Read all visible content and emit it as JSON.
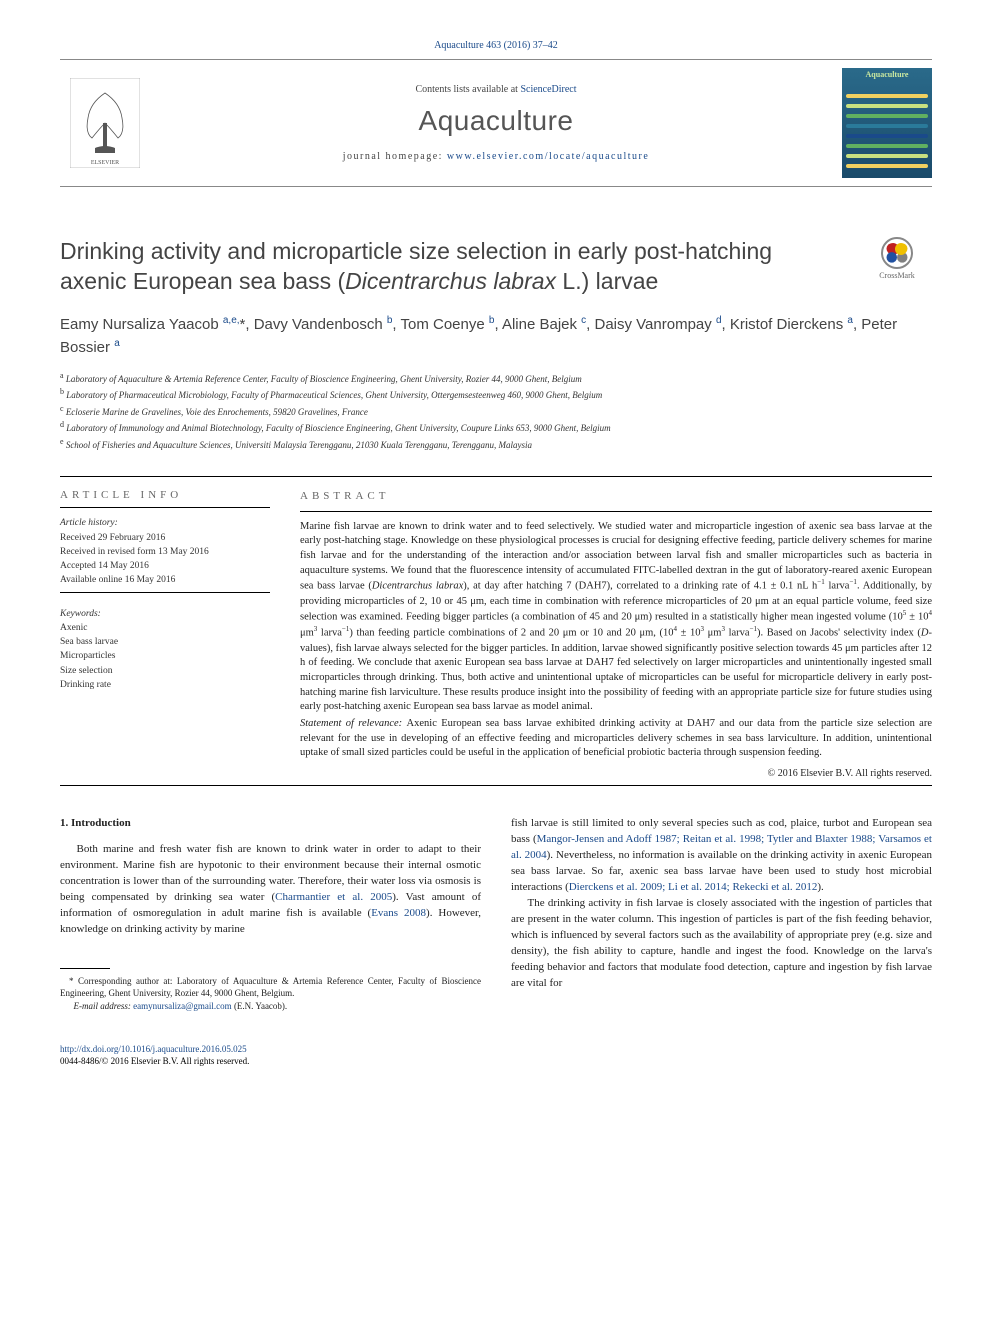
{
  "citation": "Aquaculture 463 (2016) 37–42",
  "header": {
    "contents_prefix": "Contents lists available at ",
    "contents_link": "ScienceDirect",
    "journal_name": "Aquaculture",
    "homepage_prefix": "journal homepage: ",
    "homepage_link": "www.elsevier.com/locate/aquaculture",
    "cover_label": "Aquaculture",
    "cover_bg": "#1a4a6a",
    "wave_colors": [
      "#f0d060",
      "#c8e080",
      "#60b060",
      "#2a7a9a",
      "#1a4a8a",
      "#60b060",
      "#c8e080",
      "#f0d060"
    ]
  },
  "crossmark_label": "CrossMark",
  "title_html": "Drinking activity and microparticle size selection in early post-hatching axenic European sea bass (<em>Dicentrarchus labrax</em> L.) larvae",
  "authors_html": "Eamy Nursaliza Yaacob <sup>a,e,</sup>*, Davy Vandenbosch <sup>b</sup>, Tom Coenye <sup>b</sup>, Aline Bajek <sup>c</sup>, Daisy Vanrompay <sup>d</sup>, Kristof Dierckens <sup>a</sup>, Peter Bossier <sup>a</sup>",
  "affiliations": [
    {
      "sup": "a",
      "text": "Laboratory of Aquaculture & Artemia Reference Center, Faculty of Bioscience Engineering, Ghent University, Rozier 44, 9000 Ghent, Belgium"
    },
    {
      "sup": "b",
      "text": "Laboratory of Pharmaceutical Microbiology, Faculty of Pharmaceutical Sciences, Ghent University, Ottergemsesteenweg 460, 9000 Ghent, Belgium"
    },
    {
      "sup": "c",
      "text": "Ecloserie Marine de Gravelines, Voie des Enrochements, 59820 Gravelines, France"
    },
    {
      "sup": "d",
      "text": "Laboratory of Immunology and Animal Biotechnology, Faculty of Bioscience Engineering, Ghent University, Coupure Links 653, 9000 Ghent, Belgium"
    },
    {
      "sup": "e",
      "text": "School of Fisheries and Aquaculture Sciences, Universiti Malaysia Terengganu, 21030 Kuala Terengganu, Terengganu, Malaysia"
    }
  ],
  "article_info_head": "article info",
  "abstract_head": "abstract",
  "history": {
    "head": "Article history:",
    "received": "Received 29 February 2016",
    "revised": "Received in revised form 13 May 2016",
    "accepted": "Accepted 14 May 2016",
    "online": "Available online 16 May 2016"
  },
  "keywords": {
    "head": "Keywords:",
    "items": [
      "Axenic",
      "Sea bass larvae",
      "Microparticles",
      "Size selection",
      "Drinking rate"
    ]
  },
  "abstract_html": "Marine fish larvae are known to drink water and to feed selectively. We studied water and microparticle ingestion of axenic sea bass larvae at the early post-hatching stage. Knowledge on these physiological processes is crucial for designing effective feeding, particle delivery schemes for marine fish larvae and for the understanding of the interaction and/or association between larval fish and smaller microparticles such as bacteria in aquaculture systems. We found that the fluorescence intensity of accumulated FITC-labelled dextran in the gut of laboratory-reared axenic European sea bass larvae (<em>Dicentrarchus labrax</em>), at day after hatching 7 (DAH7), correlated to a drinking rate of 4.1 ± 0.1 nL h<sup>−1</sup> larva<sup>−1</sup>. Additionally, by providing microparticles of 2, 10 or 45 μm, each time in combination with reference microparticles of 20 μm at an equal particle volume, feed size selection was examined. Feeding bigger particles (a combination of 45 and 20 μm) resulted in a statistically higher mean ingested volume (10<sup>5</sup> ± 10<sup>4</sup> μm<sup>3</sup> larva<sup>−1</sup>) than feeding particle combinations of 2 and 20 μm or 10 and 20 μm, (10<sup>4</sup> ± 10<sup>3</sup> μm<sup>3</sup> larva<sup>−1</sup>). Based on Jacobs' selectivity index (<em>D</em>-values), fish larvae always selected for the bigger particles. In addition, larvae showed significantly positive selection towards 45 μm particles after 12 h of feeding. We conclude that axenic European sea bass larvae at DAH7 fed selectively on larger microparticles and unintentionally ingested small microparticles through drinking. Thus, both active and unintentional uptake of microparticles can be useful for microparticle delivery in early post-hatching marine fish larviculture. These results produce insight into the possibility of feeding with an appropriate particle size for future studies using early post-hatching axenic European sea bass larvae as model animal.",
  "statement_head": "Statement of relevance: ",
  "statement_text": "Axenic European sea bass larvae exhibited drinking activity at DAH7 and our data from the particle size selection are relevant for the use in developing of an effective feeding and microparticles delivery schemes in sea bass larviculture. In addition, unintentional uptake of small sized particles could be useful in the application of beneficial probiotic bacteria through suspension feeding.",
  "copyright": "© 2016 Elsevier B.V. All rights reserved.",
  "body": {
    "head": "1. Introduction",
    "p1_html": "Both marine and fresh water fish are known to drink water in order to adapt to their environment. Marine fish are hypotonic to their environment because their internal osmotic concentration is lower than of the surrounding water. Therefore, their water loss via osmosis is being compensated by drinking sea water (<span class=\"cite\">Charmantier et al. 2005</span>). Vast amount of information of osmoregulation in adult marine fish is available (<span class=\"cite\">Evans 2008</span>). However, knowledge on drinking activity by marine",
    "p2_html": "fish larvae is still limited to only several species such as cod, plaice, turbot and European sea bass (<span class=\"cite\">Mangor-Jensen and Adoff 1987; Reitan et al. 1998; Tytler and Blaxter 1988; Varsamos et al. 2004</span>). Nevertheless, no information is available on the drinking activity in axenic European sea bass larvae. So far, axenic sea bass larvae have been used to study host microbial interactions (<span class=\"cite\">Dierckens et al. 2009; Li et al. 2014; Rekecki et al. 2012</span>).",
    "p3_html": "The drinking activity in fish larvae is closely associated with the ingestion of particles that are present in the water column. This ingestion of particles is part of the fish feeding behavior, which is influenced by several factors such as the availability of appropriate prey (e.g. size and density), the fish ability to capture, handle and ingest the food. Knowledge on the larva's feeding behavior and factors that modulate food detection, capture and ingestion by fish larvae are vital for"
  },
  "footnote": {
    "corr": "* Corresponding author at: Laboratory of Aquaculture & Artemia Reference Center, Faculty of Bioscience Engineering, Ghent University, Rozier 44, 9000 Ghent, Belgium.",
    "email_label": "E-mail address: ",
    "email": "eamynursaliza@gmail.com",
    "email_suffix": " (E.N. Yaacob)."
  },
  "footer": {
    "doi": "http://dx.doi.org/10.1016/j.aquaculture.2016.05.025",
    "issn": "0044-8486/© 2016 Elsevier B.V. All rights reserved."
  },
  "colors": {
    "link": "#1a4a8a",
    "text": "#222222",
    "heading_gray": "#555555"
  }
}
